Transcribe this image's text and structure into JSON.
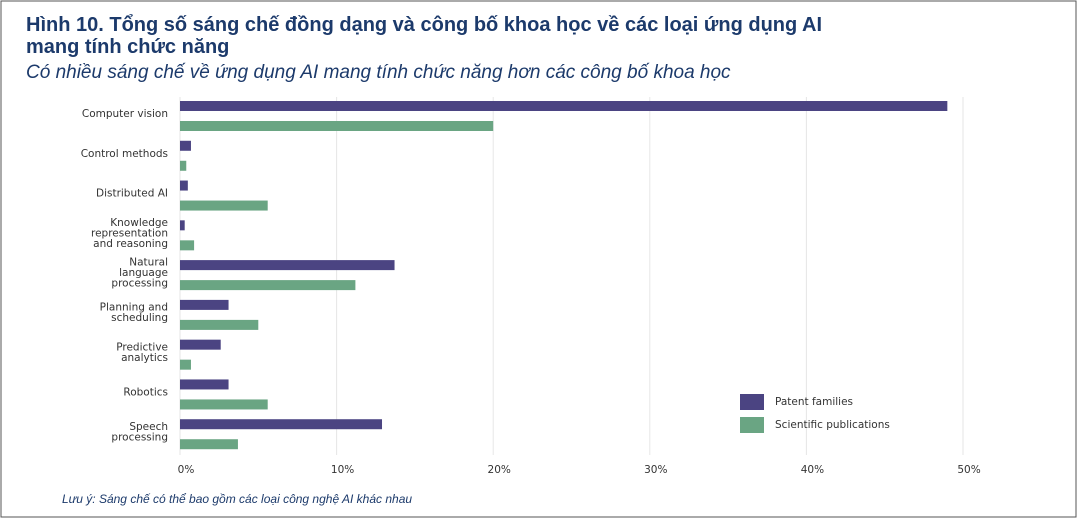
{
  "chart_data": {
    "type": "bar",
    "orientation": "horizontal",
    "title": "Hình 10. Tổng số sáng chế đồng dạng và công bố khoa học về các loại ứng dụng AI mang tính chức năng",
    "subtitle": "Có nhiều sáng chế về ứng dụng AI mang tính chức năng hơn các công bố khoa học",
    "note": "Lưu ý: Sáng chế có thể bao gồm các loại công nghệ AI khác nhau",
    "categories": [
      "Computer vision",
      "Control methods",
      "Distributed AI",
      "Knowledge representation and reasoning",
      "Natural language processing",
      "Planning and scheduling",
      "Predictive analytics",
      "Robotics",
      "Speech processing"
    ],
    "series": [
      {
        "name": "Patent families",
        "color": "#4b4482",
        "values": [
          49.0,
          0.7,
          0.5,
          0.3,
          13.7,
          3.1,
          2.6,
          3.1,
          12.9
        ]
      },
      {
        "name": "Scientific publications",
        "color": "#6aa583",
        "values": [
          20.0,
          0.4,
          5.6,
          0.9,
          11.2,
          5.0,
          0.7,
          5.6,
          3.7
        ]
      }
    ],
    "xlim": [
      0,
      50
    ],
    "xticks": [
      {
        "value": 0,
        "label": "0%"
      },
      {
        "value": 10,
        "label": "10%"
      },
      {
        "value": 20,
        "label": "20%"
      },
      {
        "value": 30,
        "label": "30%"
      },
      {
        "value": 40,
        "label": "40%"
      },
      {
        "value": 50,
        "label": "50%"
      }
    ],
    "grid": true,
    "legend": "lower right"
  }
}
